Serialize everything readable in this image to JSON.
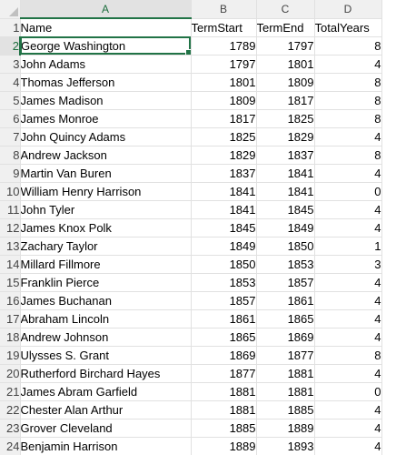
{
  "columns": {
    "row_header_corner": "",
    "letters": [
      "A",
      "B",
      "C",
      "D"
    ]
  },
  "selected_cell": "A2",
  "rows": [
    {
      "num": "1",
      "name": "Name",
      "start": "TermStart",
      "end": "TermEnd",
      "years": "TotalYears"
    },
    {
      "num": "2",
      "name": "George Washington",
      "start": "1789",
      "end": "1797",
      "years": "8"
    },
    {
      "num": "3",
      "name": "John Adams",
      "start": "1797",
      "end": "1801",
      "years": "4"
    },
    {
      "num": "4",
      "name": "Thomas Jefferson",
      "start": "1801",
      "end": "1809",
      "years": "8"
    },
    {
      "num": "5",
      "name": "James Madison",
      "start": "1809",
      "end": "1817",
      "years": "8"
    },
    {
      "num": "6",
      "name": "James Monroe",
      "start": "1817",
      "end": "1825",
      "years": "8"
    },
    {
      "num": "7",
      "name": "John Quincy Adams",
      "start": "1825",
      "end": "1829",
      "years": "4"
    },
    {
      "num": "8",
      "name": "Andrew Jackson",
      "start": "1829",
      "end": "1837",
      "years": "8"
    },
    {
      "num": "9",
      "name": "Martin Van Buren",
      "start": "1837",
      "end": "1841",
      "years": "4"
    },
    {
      "num": "10",
      "name": "William Henry Harrison",
      "start": "1841",
      "end": "1841",
      "years": "0"
    },
    {
      "num": "11",
      "name": "John Tyler",
      "start": "1841",
      "end": "1845",
      "years": "4"
    },
    {
      "num": "12",
      "name": "James Knox Polk",
      "start": "1845",
      "end": "1849",
      "years": "4"
    },
    {
      "num": "13",
      "name": "Zachary Taylor",
      "start": "1849",
      "end": "1850",
      "years": "1"
    },
    {
      "num": "14",
      "name": "Millard Fillmore",
      "start": "1850",
      "end": "1853",
      "years": "3"
    },
    {
      "num": "15",
      "name": "Franklin Pierce",
      "start": "1853",
      "end": "1857",
      "years": "4"
    },
    {
      "num": "16",
      "name": "James Buchanan",
      "start": "1857",
      "end": "1861",
      "years": "4"
    },
    {
      "num": "17",
      "name": "Abraham Lincoln",
      "start": "1861",
      "end": "1865",
      "years": "4"
    },
    {
      "num": "18",
      "name": "Andrew Johnson",
      "start": "1865",
      "end": "1869",
      "years": "4"
    },
    {
      "num": "19",
      "name": "Ulysses S. Grant",
      "start": "1869",
      "end": "1877",
      "years": "8"
    },
    {
      "num": "20",
      "name": "Rutherford Birchard Hayes",
      "start": "1877",
      "end": "1881",
      "years": "4"
    },
    {
      "num": "21",
      "name": "James Abram Garfield",
      "start": "1881",
      "end": "1881",
      "years": "0"
    },
    {
      "num": "22",
      "name": "Chester Alan Arthur",
      "start": "1881",
      "end": "1885",
      "years": "4"
    },
    {
      "num": "23",
      "name": "Grover Cleveland",
      "start": "1885",
      "end": "1889",
      "years": "4"
    },
    {
      "num": "24",
      "name": "Benjamin Harrison",
      "start": "1889",
      "end": "1893",
      "years": "4"
    }
  ]
}
